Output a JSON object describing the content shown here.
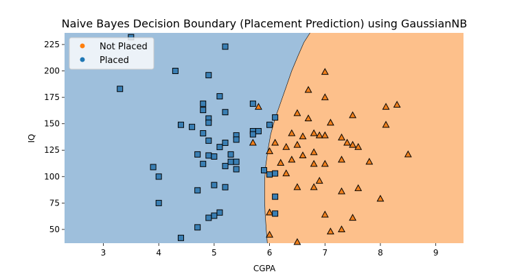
{
  "chart_data": {
    "type": "scatter",
    "title": "Naive Bayes Decision Boundary (Placement Prediction) using GaussianNB",
    "xlabel": "CGPA",
    "ylabel": "IQ",
    "xlim": [
      2.3,
      9.5
    ],
    "ylim": [
      37,
      236
    ],
    "x_ticks": [
      3,
      4,
      5,
      6,
      7,
      8,
      9
    ],
    "y_ticks": [
      50,
      75,
      100,
      125,
      150,
      175,
      200,
      225
    ],
    "legend_position": "top-left",
    "colors": {
      "placed_region": "#9ebfdc",
      "not_placed_region": "#fdc08b",
      "placed_marker": "#3a7fb4",
      "not_placed_marker": "#f07f1b",
      "legend_not_placed": "#ff7f0e",
      "legend_placed": "#1f77b4"
    },
    "decision_boundary": [
      [
        5.96,
        37
      ],
      [
        5.94,
        50
      ],
      [
        5.92,
        65
      ],
      [
        5.91,
        80
      ],
      [
        5.91,
        95
      ],
      [
        5.93,
        110
      ],
      [
        5.97,
        125
      ],
      [
        6.02,
        140
      ],
      [
        6.1,
        155
      ],
      [
        6.2,
        170
      ],
      [
        6.3,
        185
      ],
      [
        6.4,
        200
      ],
      [
        6.52,
        215
      ],
      [
        6.62,
        227
      ],
      [
        6.73,
        236
      ]
    ],
    "series": [
      {
        "name": "Not Placed",
        "marker": "triangle",
        "points": [
          [
            7.0,
            199
          ],
          [
            6.7,
            182
          ],
          [
            7.0,
            175
          ],
          [
            5.8,
            166
          ],
          [
            8.1,
            166
          ],
          [
            8.3,
            168
          ],
          [
            6.5,
            160
          ],
          [
            7.5,
            158
          ],
          [
            6.7,
            155
          ],
          [
            7.1,
            151
          ],
          [
            8.1,
            149
          ],
          [
            6.4,
            141
          ],
          [
            6.6,
            138
          ],
          [
            6.8,
            141
          ],
          [
            6.9,
            139
          ],
          [
            7.0,
            139
          ],
          [
            7.3,
            137
          ],
          [
            7.4,
            132
          ],
          [
            7.5,
            130
          ],
          [
            7.6,
            128
          ],
          [
            5.7,
            132
          ],
          [
            6.1,
            132
          ],
          [
            6.3,
            128
          ],
          [
            6.5,
            130
          ],
          [
            6.8,
            123
          ],
          [
            6.0,
            124
          ],
          [
            6.6,
            120
          ],
          [
            6.4,
            116
          ],
          [
            6.2,
            113
          ],
          [
            7.3,
            116
          ],
          [
            6.8,
            112
          ],
          [
            7.0,
            112
          ],
          [
            7.8,
            114
          ],
          [
            8.5,
            121
          ],
          [
            6.3,
            103
          ],
          [
            6.9,
            96
          ],
          [
            6.5,
            90
          ],
          [
            6.8,
            90
          ],
          [
            7.3,
            86
          ],
          [
            7.6,
            89
          ],
          [
            8.0,
            79
          ],
          [
            6.0,
            66
          ],
          [
            7.0,
            64
          ],
          [
            7.5,
            61
          ],
          [
            7.1,
            48
          ],
          [
            7.3,
            50
          ],
          [
            6.0,
            45
          ],
          [
            6.5,
            38
          ]
        ]
      },
      {
        "name": "Placed",
        "marker": "square",
        "points": [
          [
            3.5,
            232
          ],
          [
            5.2,
            223
          ],
          [
            4.3,
            200
          ],
          [
            4.9,
            196
          ],
          [
            3.3,
            183
          ],
          [
            5.1,
            176
          ],
          [
            5.7,
            169
          ],
          [
            4.8,
            169
          ],
          [
            4.8,
            163
          ],
          [
            5.2,
            161
          ],
          [
            6.1,
            156
          ],
          [
            4.9,
            155
          ],
          [
            4.9,
            151
          ],
          [
            4.4,
            149
          ],
          [
            6.0,
            149
          ],
          [
            4.6,
            147
          ],
          [
            5.7,
            143
          ],
          [
            5.8,
            143
          ],
          [
            5.7,
            140
          ],
          [
            4.8,
            141
          ],
          [
            5.4,
            139
          ],
          [
            5.4,
            135
          ],
          [
            4.9,
            134
          ],
          [
            5.2,
            132
          ],
          [
            5.1,
            128
          ],
          [
            4.7,
            121
          ],
          [
            4.9,
            120
          ],
          [
            5.0,
            119
          ],
          [
            5.3,
            121
          ],
          [
            5.3,
            114
          ],
          [
            5.4,
            114
          ],
          [
            4.8,
            112
          ],
          [
            5.2,
            110
          ],
          [
            3.9,
            109
          ],
          [
            5.4,
            107
          ],
          [
            5.9,
            106
          ],
          [
            6.0,
            102
          ],
          [
            6.1,
            103
          ],
          [
            4.0,
            100
          ],
          [
            5.0,
            92
          ],
          [
            5.2,
            90
          ],
          [
            4.7,
            87
          ],
          [
            6.1,
            81
          ],
          [
            4.0,
            75
          ],
          [
            5.1,
            66
          ],
          [
            6.1,
            65
          ],
          [
            5.0,
            63
          ],
          [
            4.9,
            61
          ],
          [
            4.7,
            52
          ],
          [
            4.4,
            42
          ]
        ]
      }
    ]
  }
}
